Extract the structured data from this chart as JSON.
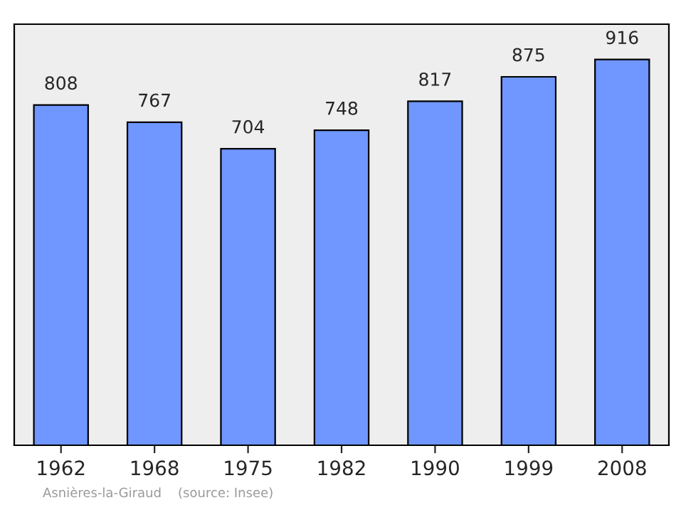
{
  "chart_data": {
    "type": "bar",
    "categories": [
      "1962",
      "1968",
      "1975",
      "1982",
      "1990",
      "1999",
      "2008"
    ],
    "values": [
      808,
      767,
      704,
      748,
      817,
      875,
      916
    ],
    "color": "#7096ff",
    "ylim": [
      0,
      1000
    ],
    "tick_labels": "x",
    "data_labels": true,
    "grid": false,
    "annotations": [
      "Asnières-la-Giraud    (source: Insee)"
    ]
  }
}
